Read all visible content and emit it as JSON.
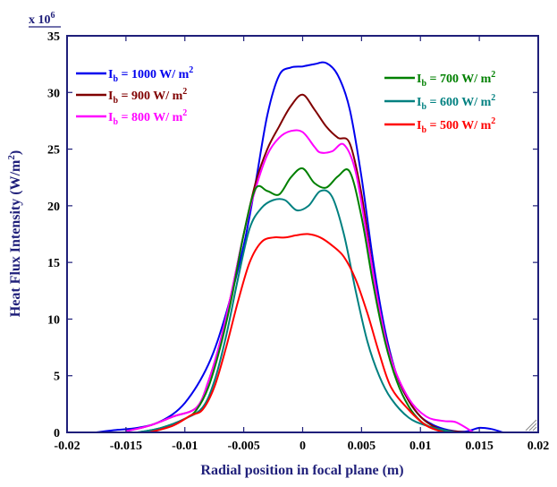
{
  "chart_data": {
    "type": "line",
    "xlabel": "Radial position in focal plane (m)",
    "ylabel": "Heat Flux Intensity (W/m²)",
    "ylabel_parts": [
      "Heat Flux Intensity (W/m",
      "2",
      ")"
    ],
    "y_multiplier": "x 10",
    "y_multiplier_exp": "6",
    "xlim": [
      -0.02,
      0.02
    ],
    "ylim": [
      0,
      35
    ],
    "x_ticks": [
      "-0.02",
      "-0.015",
      "-0.01",
      "-0.005",
      "0",
      "0.005",
      "0.01",
      "0.015",
      "0.02"
    ],
    "y_ticks": [
      "0",
      "5",
      "10",
      "15",
      "20",
      "25",
      "30",
      "35"
    ],
    "grid": false,
    "series": [
      {
        "name": "Ib = 1000 W/ m2",
        "legend_parts": [
          "I",
          "b",
          " = 1000 W/ m",
          "2"
        ],
        "color": "#0000ee",
        "legend_position": "left",
        "x": [
          -0.0175,
          -0.016,
          -0.014,
          -0.012,
          -0.01,
          -0.008,
          -0.0065,
          -0.005,
          -0.004,
          -0.003,
          -0.002,
          -0.001,
          0,
          0.001,
          0.002,
          0.003,
          0.004,
          0.005,
          0.006,
          0.007,
          0.008,
          0.009,
          0.01,
          0.011,
          0.012,
          0.013,
          0.014,
          0.015,
          0.016,
          0.017
        ],
        "y": [
          0.0,
          0.2,
          0.4,
          1.0,
          2.6,
          6.0,
          10.5,
          16.5,
          22.0,
          28.0,
          31.5,
          32.2,
          32.3,
          32.5,
          32.6,
          31.5,
          28.5,
          22.5,
          15.0,
          9.0,
          5.0,
          2.8,
          1.4,
          0.7,
          0.3,
          0.1,
          0.1,
          0.4,
          0.3,
          0.0
        ]
      },
      {
        "name": "Ib = 900 W/ m2",
        "legend_parts": [
          "I",
          "b",
          " = 900 W/ m",
          "2"
        ],
        "color": "#800000",
        "legend_position": "left",
        "x": [
          -0.015,
          -0.013,
          -0.011,
          -0.009,
          -0.008,
          -0.007,
          -0.006,
          -0.005,
          -0.004,
          -0.003,
          -0.002,
          -0.001,
          0,
          0.001,
          0.002,
          0.003,
          0.004,
          0.005,
          0.006,
          0.007,
          0.008,
          0.009,
          0.01,
          0.011,
          0.012,
          0.014
        ],
        "y": [
          0.1,
          0.6,
          1.4,
          2.2,
          4.5,
          8.0,
          12.5,
          17.5,
          22.0,
          25.0,
          27.0,
          28.8,
          29.8,
          28.5,
          27.0,
          26.0,
          25.5,
          21.0,
          14.0,
          8.5,
          5.0,
          2.8,
          1.4,
          0.6,
          0.2,
          0.0
        ]
      },
      {
        "name": "Ib = 800 W/ m2",
        "legend_parts": [
          "I",
          "b",
          " = 800 W/ m",
          "2"
        ],
        "color": "#ff00ff",
        "legend_position": "left",
        "x": [
          -0.015,
          -0.013,
          -0.011,
          -0.009,
          -0.008,
          -0.007,
          -0.006,
          -0.005,
          -0.004,
          -0.003,
          -0.002,
          -0.001,
          0,
          0.001,
          0.0015,
          0.0025,
          0.0035,
          0.0045,
          0.0055,
          0.0065,
          0.0075,
          0.009,
          0.0105,
          0.012,
          0.013,
          0.0145
        ],
        "y": [
          0.1,
          0.6,
          1.4,
          2.2,
          4.5,
          8.0,
          12.5,
          17.5,
          21.5,
          24.5,
          26.0,
          26.6,
          26.5,
          25.2,
          24.7,
          24.8,
          25.4,
          23.0,
          17.0,
          11.0,
          6.5,
          3.0,
          1.4,
          1.0,
          0.9,
          0.0
        ]
      },
      {
        "name": "Ib = 700 W/ m2",
        "legend_parts": [
          "I",
          "b",
          " = 700 W/ m",
          "2"
        ],
        "color": "#008000",
        "legend_position": "right",
        "x": [
          -0.014,
          -0.012,
          -0.01,
          -0.009,
          -0.008,
          -0.007,
          -0.006,
          -0.005,
          -0.004,
          -0.003,
          -0.002,
          -0.001,
          0,
          0.001,
          0.002,
          0.003,
          0.004,
          0.005,
          0.006,
          0.007,
          0.008,
          0.009,
          0.01,
          0.011,
          0.012,
          0.013
        ],
        "y": [
          0.0,
          0.4,
          1.2,
          2.0,
          4.0,
          7.5,
          12.0,
          17.5,
          21.5,
          21.3,
          21.0,
          22.5,
          23.3,
          22.0,
          21.6,
          22.6,
          23.0,
          19.0,
          13.0,
          8.0,
          4.5,
          2.3,
          1.0,
          0.4,
          0.1,
          0.0
        ]
      },
      {
        "name": "Ib = 600 W/ m2",
        "legend_parts": [
          "I",
          "b",
          " = 600 W/ m",
          "2"
        ],
        "color": "#008080",
        "legend_position": "right",
        "x": [
          -0.014,
          -0.012,
          -0.01,
          -0.0085,
          -0.0075,
          -0.0065,
          -0.0055,
          -0.0045,
          -0.0035,
          -0.0025,
          -0.0015,
          -0.0005,
          0.0005,
          0.0015,
          0.0025,
          0.0035,
          0.0045,
          0.0055,
          0.0065,
          0.0075,
          0.009,
          0.0105,
          0.012,
          0.013
        ],
        "y": [
          0.0,
          0.4,
          1.2,
          2.2,
          4.5,
          8.5,
          13.5,
          18.0,
          19.8,
          20.5,
          20.5,
          19.6,
          20.0,
          21.3,
          20.8,
          17.5,
          12.5,
          8.0,
          5.0,
          3.0,
          1.3,
          0.6,
          0.2,
          0.0
        ]
      },
      {
        "name": "Ib = 500 W/ m2",
        "legend_parts": [
          "I",
          "b",
          " = 500 W/ m",
          "2"
        ],
        "color": "#ff0000",
        "legend_position": "right",
        "x": [
          -0.013,
          -0.011,
          -0.0095,
          -0.0085,
          -0.0075,
          -0.0065,
          -0.0055,
          -0.0045,
          -0.0035,
          -0.0025,
          -0.0015,
          -0.0005,
          0.0005,
          0.0015,
          0.0025,
          0.0035,
          0.0045,
          0.0055,
          0.0065,
          0.0075,
          0.009,
          0.0105,
          0.012
        ],
        "y": [
          0.0,
          0.6,
          1.5,
          2.0,
          4.0,
          7.5,
          11.5,
          15.0,
          16.8,
          17.2,
          17.2,
          17.4,
          17.5,
          17.2,
          16.5,
          15.5,
          13.5,
          10.5,
          7.0,
          4.0,
          2.0,
          0.6,
          0.0
        ]
      }
    ]
  }
}
